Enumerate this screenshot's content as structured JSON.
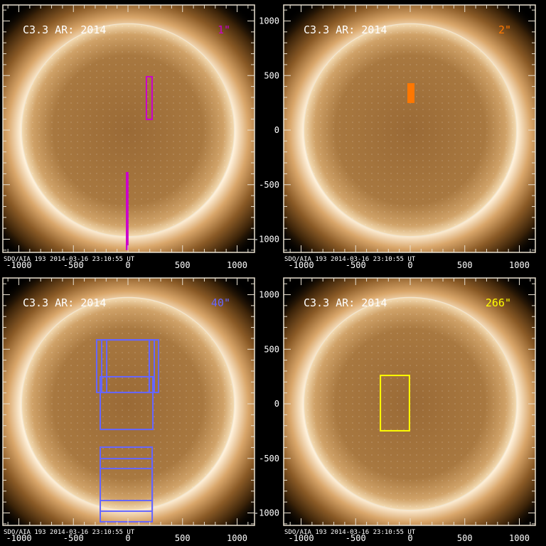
{
  "colors": {
    "disk_limb": "#f2e6d0",
    "axes": "#e8e0d0",
    "label": "#ffffff"
  },
  "panels": [
    {
      "title": "C3.3 AR: 2014",
      "label": "1\"",
      "label_color": "#cc00cc",
      "shapes": [
        {
          "kind": "rect",
          "x": [
            169,
            221
          ],
          "y": [
            98,
            489
          ]
        },
        {
          "kind": "line",
          "x": -7,
          "y": [
            -384,
            -1100
          ],
          "width_arcsec": 25
        }
      ]
    },
    {
      "title": "C3.3 AR: 2014",
      "label": "2\"",
      "label_color": "#ff7700",
      "shapes": [
        {
          "kind": "fill",
          "x": [
            -26,
            39
          ],
          "y": [
            248,
            430
          ]
        }
      ]
    },
    {
      "title": "C3.3 AR: 2014",
      "label": "40\"",
      "label_color": "#6666ff",
      "shapes": [
        {
          "kind": "rect",
          "x": [
            -287,
            195
          ],
          "y": [
            104,
            586
          ]
        },
        {
          "kind": "rect",
          "x": [
            -241,
            241
          ],
          "y": [
            104,
            586
          ]
        },
        {
          "kind": "rect",
          "x": [
            -195,
            280
          ],
          "y": [
            104,
            586
          ]
        },
        {
          "kind": "rect",
          "x": [
            -254,
            228
          ],
          "y": [
            -235,
            248
          ]
        },
        {
          "kind": "rect",
          "x": [
            -254,
            222
          ],
          "y": [
            -886,
            -397
          ]
        },
        {
          "kind": "rect",
          "x": [
            -254,
            222
          ],
          "y": [
            -984,
            -502
          ]
        },
        {
          "kind": "rect",
          "x": [
            -254,
            222
          ],
          "y": [
            -1081,
            -593
          ]
        }
      ]
    },
    {
      "title": "C3.3 AR: 2014",
      "label": "266\"",
      "label_color": "#ffff00",
      "shapes": [
        {
          "kind": "rect",
          "x": [
            -273,
            -7
          ],
          "y": [
            -247,
            260
          ]
        }
      ]
    }
  ],
  "footer": "SDO/AIA 193   2014-03-16 23:10:55 UT",
  "axis": {
    "x_ticks": [
      -1000,
      -500,
      0,
      500,
      1000
    ],
    "y_ticks": [
      1000,
      500,
      0,
      -500,
      -1000
    ],
    "units": "arcsec"
  }
}
